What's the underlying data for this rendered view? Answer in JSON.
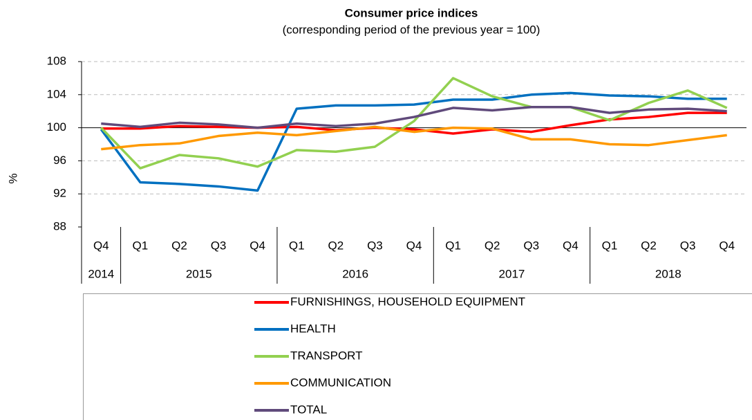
{
  "chart_data": {
    "type": "line",
    "title": "Consumer price indices",
    "subtitle": "(corresponding period of the previous year = 100)",
    "y_label": "%",
    "categories": [
      "Q4",
      "Q1",
      "Q2",
      "Q3",
      "Q4",
      "Q1",
      "Q2",
      "Q3",
      "Q4",
      "Q1",
      "Q2",
      "Q3",
      "Q4",
      "Q1",
      "Q2",
      "Q3",
      "Q4"
    ],
    "category_years": [
      "2014",
      "2015",
      "2015",
      "2015",
      "2015",
      "2016",
      "2016",
      "2016",
      "2016",
      "2017",
      "2017",
      "2017",
      "2017",
      "2018",
      "2018",
      "2018",
      "2018"
    ],
    "ylim": [
      88,
      108
    ],
    "yticks": [
      88,
      92,
      96,
      100,
      104,
      108
    ],
    "baseline": 100,
    "grid": true,
    "legend": "bottom",
    "series": [
      {
        "name": "FURNISHINGS, HOUSEHOLD EQUIPMENT",
        "color": "#ff0000",
        "values": [
          99.9,
          99.9,
          100.2,
          100.1,
          100.0,
          100.1,
          99.7,
          100.0,
          99.8,
          99.3,
          99.8,
          99.5,
          100.3,
          101.0,
          101.3,
          101.8,
          101.8
        ]
      },
      {
        "name": "HEALTH",
        "color": "#0070c0",
        "values": [
          99.8,
          93.4,
          93.2,
          92.9,
          92.4,
          102.3,
          102.7,
          102.7,
          102.8,
          103.4,
          103.4,
          104.0,
          104.2,
          103.9,
          103.8,
          103.5,
          103.5
        ]
      },
      {
        "name": "TRANSPORT",
        "color": "#92d050",
        "values": [
          100.0,
          95.1,
          96.7,
          96.3,
          95.3,
          97.3,
          97.1,
          97.7,
          100.8,
          106.0,
          103.8,
          102.5,
          102.5,
          100.9,
          103.0,
          104.5,
          102.4
        ]
      },
      {
        "name": "COMMUNICATION",
        "color": "#ff9900",
        "values": [
          97.4,
          97.9,
          98.1,
          99.0,
          99.4,
          99.1,
          99.6,
          100.1,
          99.5,
          100.0,
          99.9,
          98.6,
          98.6,
          98.0,
          97.9,
          98.5,
          99.1
        ]
      },
      {
        "name": "TOTAL",
        "color": "#604a7b",
        "values": [
          100.5,
          100.1,
          100.6,
          100.4,
          100.0,
          100.5,
          100.2,
          100.5,
          101.3,
          102.4,
          102.1,
          102.5,
          102.5,
          101.8,
          102.2,
          102.3,
          102.0
        ]
      }
    ]
  }
}
